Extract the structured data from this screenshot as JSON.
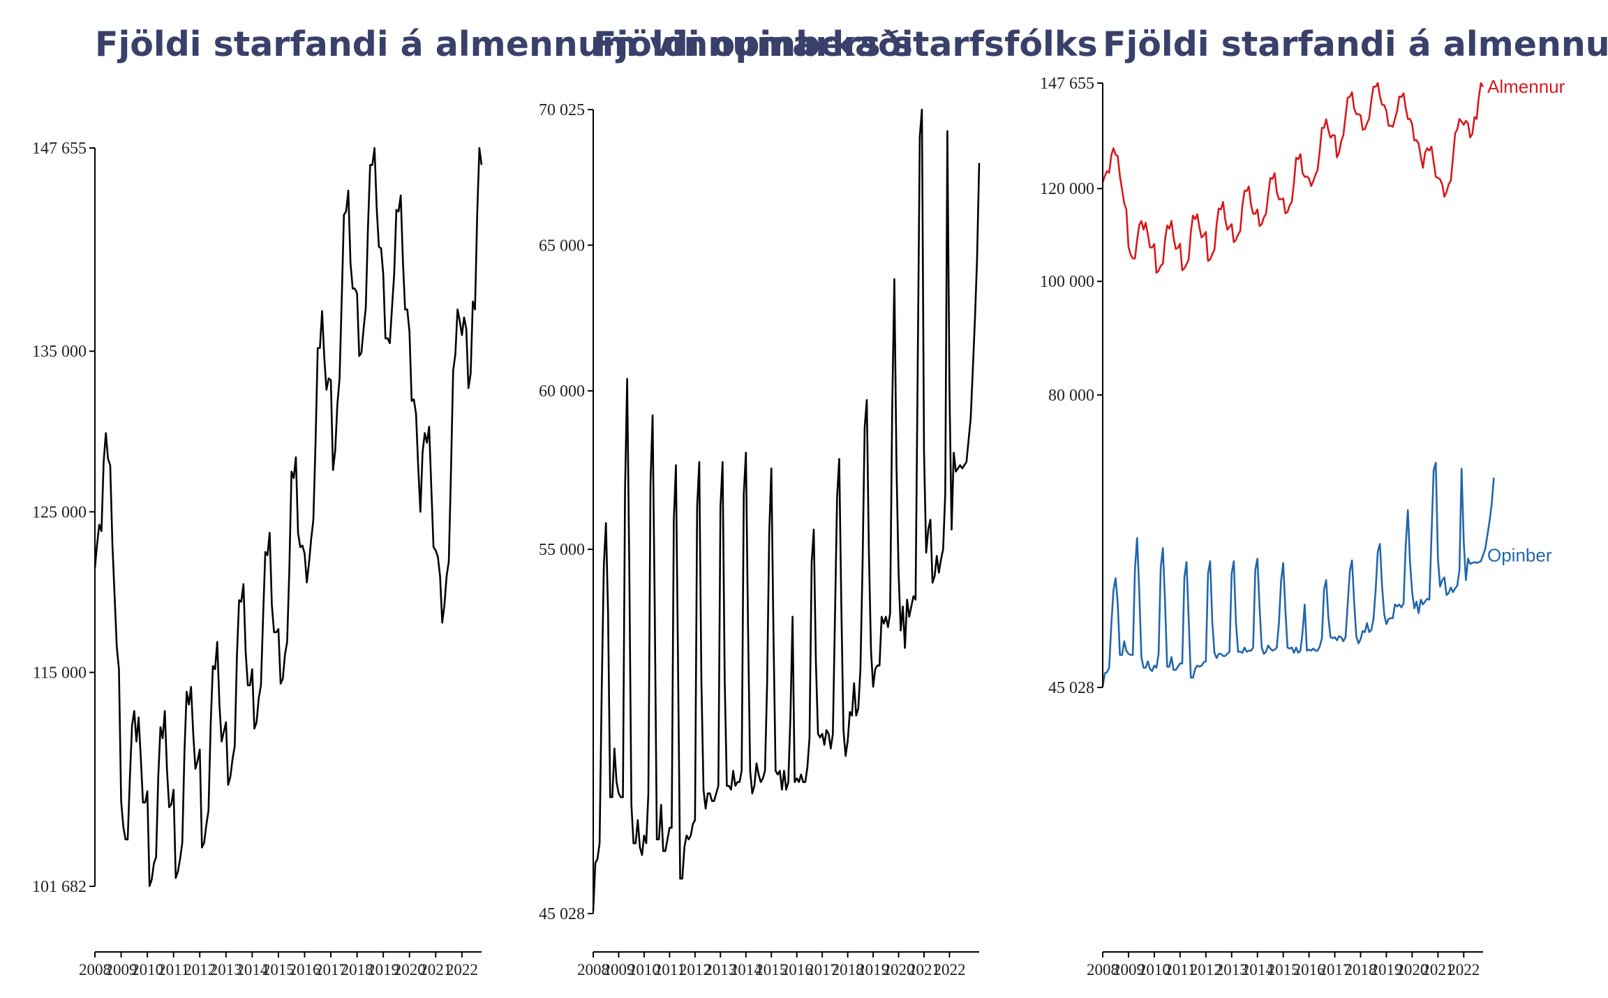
{
  "chart_data": [
    {
      "type": "line",
      "title": "Fjöldi starfandi á almennum vinnumarkaði",
      "xlabel": "",
      "ylabel": "",
      "ylim": [
        101682,
        147655
      ],
      "yticks": [
        101682,
        115000,
        125000,
        135000,
        147655
      ],
      "yticklabels": [
        "101 682",
        "115 000",
        "125 000",
        "135 000",
        "147 655"
      ],
      "xticks": [
        "2008",
        "2009",
        "2010",
        "2011",
        "2012",
        "2013",
        "2014",
        "2015",
        "2016",
        "2017",
        "2018",
        "2019",
        "2020",
        "2021",
        "2022"
      ],
      "grid": false,
      "series": [
        {
          "color": "#000000",
          "values": [
            121500,
            123000,
            124200,
            123800,
            128100,
            129900,
            128300,
            127900,
            123000,
            119800,
            116600,
            115200,
            107000,
            105400,
            104600,
            104600,
            108400,
            111700,
            112600,
            110700,
            112200,
            109700,
            106900,
            106900,
            107600,
            101700,
            102100,
            103100,
            103500,
            108500,
            111600,
            110900,
            112600,
            108900,
            106600,
            106800,
            107700,
            102200,
            102600,
            103400,
            104400,
            110100,
            113800,
            113000,
            114100,
            111200,
            109000,
            109500,
            110200,
            104100,
            104400,
            105500,
            106400,
            111800,
            115400,
            115200,
            116900,
            113000,
            110700,
            111300,
            111900,
            108000,
            108500,
            109600,
            110400,
            116000,
            119500,
            119400,
            120500,
            116300,
            114200,
            114200,
            115200,
            111500,
            111900,
            113400,
            114200,
            118500,
            122500,
            122300,
            123700,
            119200,
            117500,
            117500,
            117700,
            114300,
            114600,
            116100,
            116900,
            121400,
            127500,
            127100,
            128400,
            123700,
            122800,
            122900,
            122400,
            120600,
            121800,
            123300,
            124500,
            129300,
            135200,
            135200,
            137500,
            134600,
            132600,
            133300,
            133200,
            127600,
            128800,
            131700,
            133300,
            138300,
            143500,
            143700,
            145000,
            140500,
            138900,
            138900,
            138600,
            134700,
            134900,
            136400,
            137700,
            142700,
            146600,
            146600,
            147650,
            143900,
            141500,
            141400,
            139800,
            135800,
            135800,
            135500,
            137700,
            139800,
            143800,
            143700,
            144700,
            140600,
            137600,
            137600,
            136200,
            131900,
            132000,
            131100,
            127800,
            125000,
            128700,
            129900,
            129300,
            130300,
            126500,
            122800,
            122600,
            122200,
            121000,
            118100,
            119200,
            121000,
            121900,
            127500,
            133800,
            134800,
            137600,
            136900,
            136000,
            137100,
            136400,
            132700,
            133600,
            138100,
            137600,
            143500,
            147655,
            146600
          ]
        }
      ]
    },
    {
      "type": "line",
      "title": "Fjöldi opinbers starfsfólks",
      "xlabel": "",
      "ylabel": "",
      "ylim": [
        45028,
        70025
      ],
      "yticks": [
        45028,
        55000,
        60000,
        65000,
        70025
      ],
      "yticklabels": [
        "45 028",
        "55 000",
        "60 000",
        "65 000",
        "70 025"
      ],
      "xticks": [
        "2008",
        "2009",
        "2010",
        "2011",
        "2012",
        "2013",
        "2014",
        "2015",
        "2016",
        "2017",
        "2018",
        "2019",
        "2020",
        "2021",
        "2022"
      ],
      "grid": false,
      "series": [
        {
          "color": "#000000",
          "values": [
            45100,
            46300,
            46400,
            46800,
            50900,
            54500,
            55800,
            53100,
            48000,
            48000,
            49300,
            48400,
            48100,
            48000,
            48000,
            56800,
            60400,
            54500,
            47800,
            46800,
            46800,
            47400,
            46700,
            46500,
            47000,
            46800,
            48100,
            57000,
            59200,
            53300,
            46900,
            46900,
            47800,
            46600,
            46600,
            46900,
            47200,
            47200,
            55900,
            57600,
            51600,
            45900,
            45900,
            46700,
            47000,
            46900,
            47000,
            47300,
            47400,
            56300,
            57700,
            51200,
            48200,
            47700,
            48100,
            48100,
            47900,
            47900,
            48100,
            48300,
            56300,
            57700,
            51200,
            48300,
            48300,
            48200,
            48700,
            48300,
            48400,
            48400,
            48700,
            56700,
            58000,
            52700,
            48700,
            48100,
            48300,
            48900,
            48600,
            48400,
            48500,
            48700,
            51100,
            55500,
            57500,
            52500,
            48700,
            48600,
            48700,
            48200,
            48700,
            48200,
            48400,
            50200,
            53000,
            48400,
            48500,
            48400,
            48600,
            48400,
            48400,
            48800,
            49600,
            54600,
            55600,
            51700,
            49700,
            49600,
            49700,
            49400,
            49800,
            49700,
            49300,
            49700,
            53000,
            56600,
            57800,
            53300,
            49800,
            49100,
            49500,
            50300,
            50200,
            51100,
            50200,
            50400,
            51500,
            54500,
            58800,
            59700,
            54900,
            52000,
            51000,
            51500,
            51600,
            51600,
            53000,
            52800,
            53000,
            52700,
            53100,
            59500,
            63800,
            57600,
            54300,
            52600,
            53300,
            52100,
            53500,
            53000,
            53300,
            53600,
            53500,
            60700,
            69000,
            70025,
            58000,
            54900,
            55600,
            55900,
            54000,
            54200,
            54800,
            54300,
            54700,
            55000,
            56700,
            69200,
            60000,
            55600,
            58000,
            57400,
            57500,
            57600,
            57500,
            57600,
            57700,
            58400,
            59100,
            60700,
            62400,
            64500,
            68000
          ]
        }
      ]
    },
    {
      "type": "line",
      "title": "Fjöldi starfandi á almennum og opinberum vinnumarkaði",
      "xlabel": "",
      "ylabel": "",
      "ylim": [
        45028,
        147655
      ],
      "yticks": [
        45028,
        80000,
        100000,
        120000,
        147655
      ],
      "yticklabels": [
        "45 028",
        "80 000",
        "100 000",
        "120 000",
        "147 655"
      ],
      "xticks": [
        "2008",
        "2009",
        "2010",
        "2011",
        "2012",
        "2013",
        "2014",
        "2015",
        "2016",
        "2017",
        "2018",
        "2019",
        "2020",
        "2021",
        "2022"
      ],
      "grid": false,
      "series": [
        {
          "name": "Almennur",
          "color": "#d7191c",
          "values": [
            121500,
            123000,
            124200,
            123800,
            128100,
            129900,
            128300,
            127900,
            123000,
            119800,
            116600,
            115200,
            107000,
            105400,
            104600,
            104600,
            108400,
            111700,
            112600,
            110700,
            112200,
            109700,
            106900,
            106900,
            107600,
            101700,
            102100,
            103100,
            103500,
            108500,
            111600,
            110900,
            112600,
            108900,
            106600,
            106800,
            107700,
            102200,
            102600,
            103400,
            104400,
            110100,
            113800,
            113000,
            114100,
            111200,
            109000,
            109500,
            110200,
            104100,
            104400,
            105500,
            106400,
            111800,
            115400,
            115200,
            116900,
            113000,
            110700,
            111300,
            111900,
            108000,
            108500,
            109600,
            110400,
            116000,
            119500,
            119400,
            120500,
            116300,
            114200,
            114200,
            115200,
            111500,
            111900,
            113400,
            114200,
            118500,
            122500,
            122300,
            123700,
            119200,
            117500,
            117500,
            117700,
            114300,
            114600,
            116100,
            116900,
            121400,
            127500,
            127100,
            128400,
            123700,
            122800,
            122900,
            122400,
            120600,
            121800,
            123300,
            124500,
            129300,
            135200,
            135200,
            137500,
            134600,
            132600,
            133300,
            133200,
            127600,
            128800,
            131700,
            133300,
            138300,
            143500,
            143700,
            145000,
            140500,
            138900,
            138900,
            138600,
            134700,
            134900,
            136400,
            137700,
            142700,
            146600,
            146600,
            147650,
            143900,
            141500,
            141400,
            139800,
            135800,
            135800,
            135500,
            137700,
            139800,
            143800,
            143700,
            144700,
            140600,
            137600,
            137600,
            136200,
            131900,
            132000,
            131100,
            127800,
            125000,
            128700,
            129900,
            129300,
            130300,
            126500,
            122800,
            122600,
            122200,
            121000,
            118100,
            119200,
            121000,
            121900,
            127500,
            133800,
            134800,
            137600,
            136900,
            136000,
            137100,
            136400,
            132700,
            133600,
            138100,
            137600,
            143500,
            147655,
            146600
          ]
        },
        {
          "name": "Opinber",
          "color": "#2166ac",
          "values": [
            45100,
            46300,
            46400,
            46800,
            50900,
            54500,
            55800,
            53100,
            48000,
            48000,
            49300,
            48400,
            48100,
            48000,
            48000,
            56800,
            60400,
            54500,
            47800,
            46800,
            46800,
            47400,
            46700,
            46500,
            47000,
            46800,
            48100,
            57000,
            59200,
            53300,
            46900,
            46900,
            47800,
            46600,
            46600,
            46900,
            47200,
            47200,
            55900,
            57600,
            51600,
            45900,
            45900,
            46700,
            47000,
            46900,
            47000,
            47300,
            47400,
            56300,
            57700,
            51200,
            48200,
            47700,
            48100,
            48100,
            47900,
            47900,
            48100,
            48300,
            56300,
            57700,
            51200,
            48300,
            48300,
            48200,
            48700,
            48300,
            48400,
            48400,
            48700,
            56700,
            58000,
            52700,
            48700,
            48100,
            48300,
            48900,
            48600,
            48400,
            48500,
            48700,
            51100,
            55500,
            57500,
            52500,
            48700,
            48600,
            48700,
            48200,
            48700,
            48200,
            48400,
            50200,
            53000,
            48400,
            48500,
            48400,
            48600,
            48400,
            48400,
            48800,
            49600,
            54600,
            55600,
            51700,
            49700,
            49600,
            49700,
            49400,
            49800,
            49700,
            49300,
            49700,
            53000,
            56600,
            57800,
            53300,
            49800,
            49100,
            49500,
            50300,
            50200,
            51100,
            50200,
            50400,
            51500,
            54500,
            58800,
            59700,
            54900,
            52000,
            51000,
            51500,
            51600,
            51600,
            53000,
            52800,
            53000,
            52700,
            53100,
            59500,
            63800,
            57600,
            54300,
            52600,
            53300,
            52100,
            53500,
            53000,
            53300,
            53600,
            53500,
            60700,
            69000,
            70025,
            58000,
            54900,
            55600,
            55900,
            54000,
            54200,
            54800,
            54300,
            54700,
            55000,
            56700,
            69200,
            60000,
            55600,
            58000,
            57400,
            57500,
            57600,
            57500,
            57600,
            57700,
            58400,
            59100,
            60700,
            62400,
            64500,
            68000
          ]
        }
      ]
    }
  ]
}
